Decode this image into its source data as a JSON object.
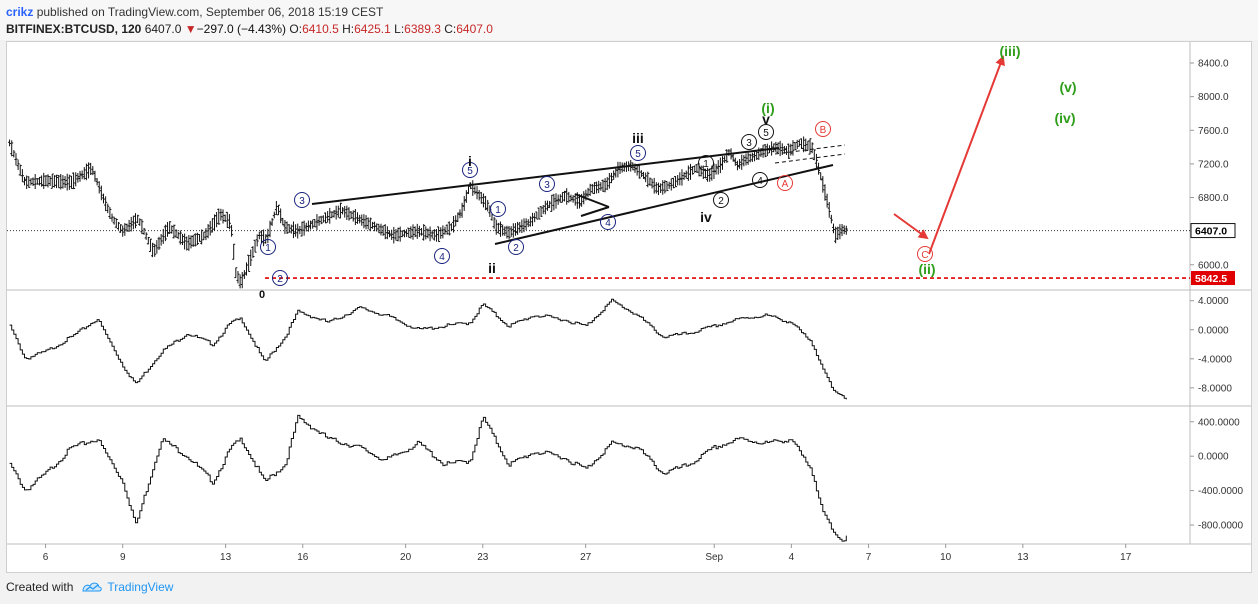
{
  "header": {
    "user": "crikz",
    "published": " published on TradingView.com, September 06, 2018 15:19 CEST",
    "symbol": "BITFINEX:BTCUSD, 120",
    "last": "6407.0",
    "change_arrow": "▼",
    "change": "−297.0 (−4.43%)",
    "o_label": "O:",
    "o_value": "6410.5",
    "h_label": "H:",
    "h_value": "6425.1",
    "l_label": "L:",
    "l_value": "6389.3",
    "c_label": "C:",
    "c_value": "6407.0"
  },
  "colors": {
    "wave_blue": "#1a237e",
    "wave_green": "#2e9e1a",
    "wave_red": "#e53935",
    "support_red": "#e00000",
    "price_text": "#000000"
  },
  "chart_data": {
    "type": "line",
    "price_axis": {
      "ticks": [
        "8400.0",
        "8000.0",
        "7600.0",
        "7200.0",
        "6800.0",
        "6400.0",
        "6000.0"
      ],
      "values": [
        8400,
        8000,
        7600,
        7200,
        6800,
        6400,
        6000
      ],
      "ylim": [
        5700,
        8650
      ]
    },
    "indicator1_axis": {
      "ticks": [
        "4.0000",
        "0.0000",
        "-4.0000",
        "-8.0000"
      ],
      "values": [
        4,
        0,
        -4,
        -8
      ],
      "ylim": [
        -10.5,
        5.2
      ]
    },
    "indicator2_axis": {
      "ticks": [
        "400.0000",
        "0.0000",
        "-400.0000",
        "-800.0000"
      ],
      "values": [
        400,
        0,
        -400,
        -800
      ],
      "ylim": [
        -1020,
        560
      ]
    },
    "x_ticks": [
      "6",
      "9",
      "13",
      "16",
      "20",
      "23",
      "27",
      "Sep",
      "4",
      "7",
      "10",
      "13",
      "17"
    ],
    "x_tick_days": [
      6,
      9,
      13,
      16,
      20,
      23,
      27,
      32,
      35,
      38,
      41,
      44,
      48
    ],
    "xlim_days": [
      4.5,
      50.5
    ],
    "last_day": 37.2,
    "price_label": "6407.0",
    "support_label": "5842.5",
    "support_level": 5842.5,
    "price_series": {
      "days": [
        4.6,
        5.2,
        6.0,
        7.0,
        7.8,
        8.3,
        8.6,
        9.0,
        9.6,
        10.2,
        10.8,
        11.5,
        12.2,
        12.8,
        13.2,
        13.4,
        13.6,
        14.0,
        14.3,
        14.6,
        15.0,
        15.3,
        15.8,
        16.5,
        17.5,
        18.5,
        19.5,
        20.5,
        21.2,
        21.8,
        22.2,
        22.5,
        22.8,
        23.2,
        23.5,
        24.0,
        24.8,
        25.5,
        26.2,
        26.8,
        27.2,
        27.8,
        28.3,
        28.8,
        29.3,
        29.8,
        30.3,
        30.8,
        31.3,
        31.8,
        32.3,
        32.6,
        32.9,
        33.2,
        33.5,
        33.9,
        34.4,
        34.9,
        35.3,
        35.6,
        35.8,
        36.1,
        36.4,
        36.7,
        37.0,
        37.2
      ],
      "values": [
        7450,
        6980,
        7000,
        6980,
        7150,
        6750,
        6550,
        6400,
        6550,
        6150,
        6450,
        6250,
        6350,
        6600,
        6500,
        5900,
        5780,
        6100,
        6350,
        6300,
        6700,
        6450,
        6400,
        6500,
        6650,
        6500,
        6350,
        6400,
        6350,
        6450,
        6650,
        6950,
        6850,
        6700,
        6450,
        6380,
        6500,
        6700,
        6820,
        6750,
        6900,
        6950,
        7150,
        7180,
        7050,
        6900,
        6950,
        7050,
        7150,
        7060,
        7200,
        7350,
        7180,
        7250,
        7280,
        7350,
        7400,
        7350,
        7450,
        7420,
        7400,
        7100,
        6750,
        6350,
        6420,
        6407
      ]
    },
    "indicator1_series": {
      "days": [
        4.6,
        5.2,
        6.0,
        7.0,
        8.0,
        9.0,
        9.5,
        10.5,
        11.5,
        12.5,
        13.2,
        13.6,
        14.5,
        15.3,
        15.8,
        17.0,
        18.2,
        19.2,
        20.5,
        21.5,
        22.5,
        23.0,
        24.0,
        25.0,
        26.0,
        27.0,
        28.0,
        29.0,
        30.0,
        31.0,
        32.0,
        33.0,
        34.0,
        35.0,
        35.8,
        36.2,
        36.6,
        37.2
      ],
      "values": [
        0.5,
        -4.0,
        -3.0,
        -1.0,
        1.5,
        -5.0,
        -7.5,
        -3.0,
        -0.5,
        -2.0,
        1.0,
        1.5,
        -4.5,
        -1.0,
        2.5,
        1.0,
        3.0,
        2.0,
        0.0,
        0.5,
        1.0,
        3.5,
        0.5,
        2.0,
        1.5,
        0.5,
        4.0,
        2.0,
        -1.0,
        -0.5,
        0.5,
        1.5,
        2.0,
        1.0,
        -2.0,
        -5.0,
        -8.5,
        -9.5
      ]
    },
    "indicator2_series": {
      "days": [
        4.6,
        5.2,
        6.0,
        7.0,
        8.0,
        9.0,
        9.5,
        10.5,
        11.5,
        12.5,
        13.2,
        13.6,
        14.5,
        15.3,
        15.8,
        17.0,
        18.2,
        19.2,
        20.5,
        21.5,
        22.5,
        23.0,
        24.0,
        25.0,
        26.0,
        27.0,
        28.0,
        29.0,
        30.0,
        31.0,
        32.0,
        33.0,
        34.0,
        35.0,
        35.8,
        36.2,
        36.6,
        37.0,
        37.2
      ],
      "values": [
        -100,
        -400,
        -200,
        100,
        200,
        -300,
        -800,
        200,
        0,
        -300,
        100,
        200,
        -300,
        -100,
        450,
        200,
        100,
        -50,
        150,
        -100,
        -50,
        450,
        -100,
        50,
        0,
        -150,
        150,
        100,
        -200,
        -100,
        100,
        200,
        150,
        200,
        -200,
        -600,
        -900,
        -1000,
        -850
      ]
    }
  },
  "wave_labels": {
    "l1": "1",
    "l2": "2",
    "l3": "3",
    "l4": "4",
    "l5": "5",
    "m1": "1",
    "m2": "2",
    "m3": "3",
    "m4": "4",
    "m5": "5",
    "b1": "1",
    "b2": "2",
    "b3": "3",
    "b4": "4",
    "b5": "5",
    "i": "i",
    "ii": "ii",
    "iii": "iii",
    "iv": "iv",
    "v": "v",
    "g_i": "(i)",
    "g_ii": "(ii)",
    "g_iii": "(iii)",
    "g_iv": "(iv)",
    "g_v": "(v)",
    "a": "A",
    "b": "B",
    "c": "C",
    "zero": "0"
  },
  "footer": {
    "created_with": "Created with",
    "brand": "TradingView"
  }
}
